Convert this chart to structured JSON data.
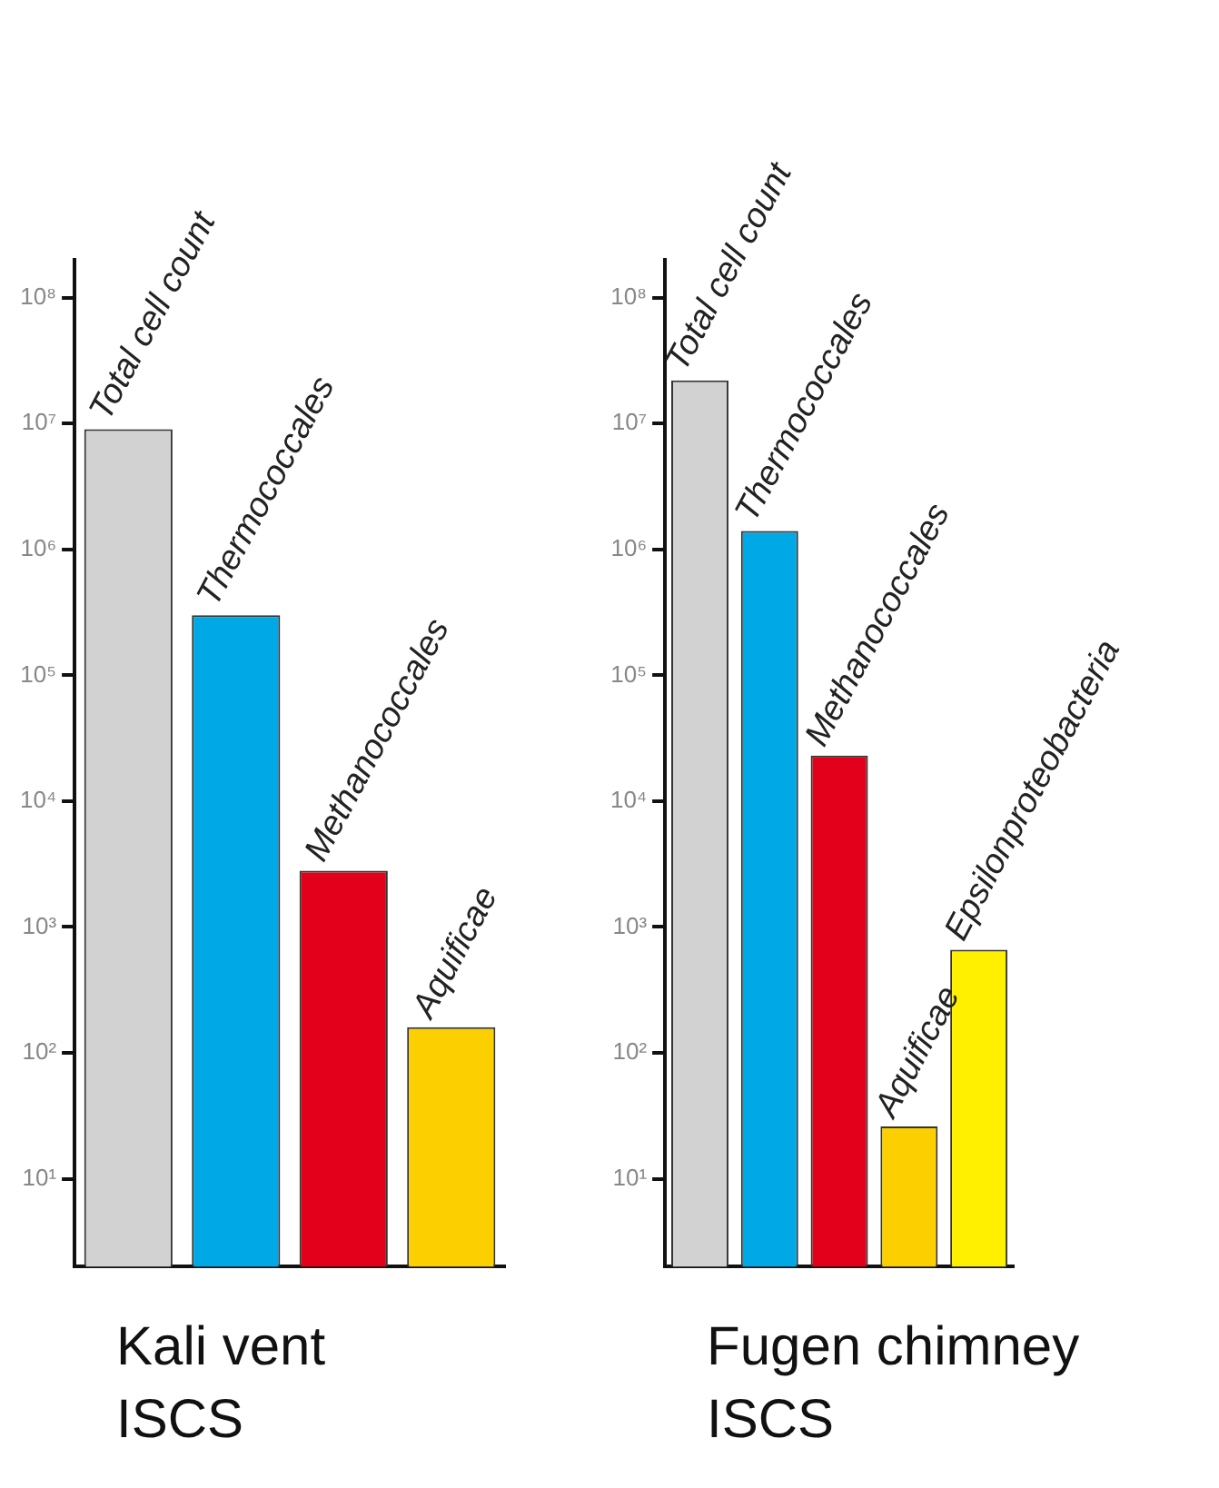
{
  "chart_data": [
    {
      "type": "bar",
      "xlabel": "Kali vent\nISCS",
      "categories": [
        null,
        null,
        null,
        null
      ],
      "values": [
        9000000,
        300000,
        2800,
        160
      ],
      "colors": [
        "#d2d2d2",
        "#00a9e6",
        "#e2001a",
        "#fccf00"
      ],
      "log": "y",
      "ylim": [
        2,
        200000000
      ],
      "yticks": [
        {
          "value": 10,
          "label": "10¹"
        },
        {
          "value": 100,
          "label": "10²"
        },
        {
          "value": 1000,
          "label": "10³"
        },
        {
          "value": 10000,
          "label": "10⁴"
        },
        {
          "value": 100000,
          "label": "10⁵"
        },
        {
          "value": 1000000,
          "label": "10⁶"
        },
        {
          "value": 10000000,
          "label": "10⁷"
        },
        {
          "value": 100000000,
          "label": "10⁸"
        }
      ],
      "annotations": [
        "Total cell count",
        "Thermococcales",
        "Methanococcales",
        "Aquificae"
      ]
    },
    {
      "type": "bar",
      "xlabel": "Fugen chimney\nISCS",
      "categories": [
        null,
        null,
        null,
        null,
        null
      ],
      "values": [
        22000000,
        1400000,
        23000,
        26,
        660
      ],
      "colors": [
        "#d2d2d2",
        "#00a9e6",
        "#e2001a",
        "#fccf00",
        "#fff000"
      ],
      "log": "y",
      "ylim": [
        2,
        200000000
      ],
      "yticks": [
        {
          "value": 10,
          "label": "10¹"
        },
        {
          "value": 100,
          "label": "10²"
        },
        {
          "value": 1000,
          "label": "10³"
        },
        {
          "value": 10000,
          "label": "10⁴"
        },
        {
          "value": 100000,
          "label": "10⁵"
        },
        {
          "value": 1000000,
          "label": "10⁶"
        },
        {
          "value": 10000000,
          "label": "10⁷"
        },
        {
          "value": 100000000,
          "label": "10⁸"
        }
      ],
      "annotations": [
        "Total cell count",
        "Thermococcales",
        "Methanococcales",
        "Aquificae",
        "Epsilonproteobacteria"
      ]
    }
  ]
}
